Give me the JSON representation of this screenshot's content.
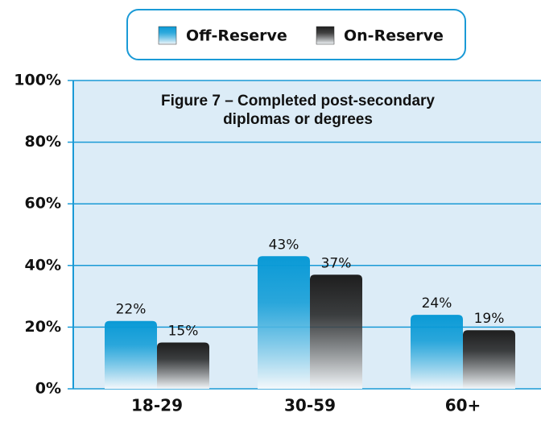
{
  "chart_data": {
    "type": "bar",
    "title": "Figure 7 – Completed post-secondary diplomas or degrees",
    "categories": [
      "18-29",
      "30-59",
      "60+"
    ],
    "series": [
      {
        "name": "Off-Reserve",
        "color": "#0a9ad6",
        "values": [
          22,
          43,
          24
        ],
        "value_labels": [
          "22%",
          "43%",
          "24%"
        ]
      },
      {
        "name": "On-Reserve",
        "color": "#1e1e1e",
        "values": [
          15,
          37,
          19
        ],
        "value_labels": [
          "15%",
          "37%",
          "19%"
        ]
      }
    ],
    "ylim": [
      0,
      100
    ],
    "yticks": [
      {
        "value": 0,
        "label": "0%"
      },
      {
        "value": 20,
        "label": "20%"
      },
      {
        "value": 40,
        "label": "40%"
      },
      {
        "value": 60,
        "label": "60%"
      },
      {
        "value": 80,
        "label": "80%"
      },
      {
        "value": 100,
        "label": "100%"
      }
    ],
    "grid": true
  }
}
